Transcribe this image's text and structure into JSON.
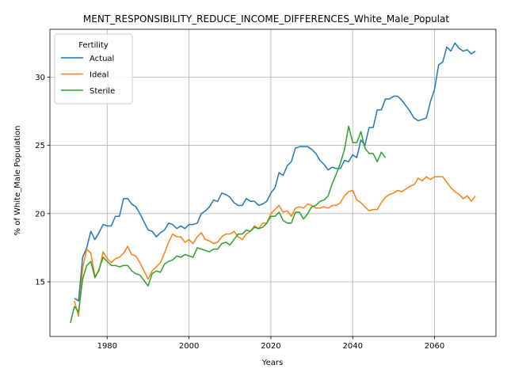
{
  "chart_data": {
    "type": "line",
    "title": "MENT_RESPONSIBILITY_REDUCE_INCOME_DIFFERENCES_White_Male_Populat",
    "xlabel": "Years",
    "ylabel": "% of White_Male Population",
    "xlim": [
      1966,
      2075
    ],
    "ylim": [
      11,
      33.5
    ],
    "xticks": [
      1980,
      2000,
      2020,
      2040,
      2060
    ],
    "yticks": [
      15,
      20,
      25,
      30
    ],
    "grid": true,
    "legend": {
      "title": "Fertility",
      "placement": "top-left"
    },
    "colors": {
      "Actual": "#1f77b4",
      "Ideal": "#ff7f0e",
      "Sterile": "#2ca02c"
    },
    "series": [
      {
        "name": "Actual",
        "x": [
          1972,
          1973,
          1974,
          1975,
          1976,
          1977,
          1978,
          1979,
          1980,
          1981,
          1982,
          1983,
          1984,
          1985,
          1986,
          1987,
          1988,
          1989,
          1990,
          1991,
          1992,
          1993,
          1994,
          1995,
          1996,
          1997,
          1998,
          1999,
          2000,
          2001,
          2002,
          2003,
          2004,
          2005,
          2006,
          2007,
          2008,
          2009,
          2010,
          2011,
          2012,
          2013,
          2014,
          2015,
          2016,
          2017,
          2018,
          2019,
          2020,
          2021,
          2022,
          2023,
          2024,
          2025,
          2026,
          2027,
          2028,
          2029,
          2030,
          2031,
          2032,
          2033,
          2034,
          2035,
          2036,
          2037,
          2038,
          2039,
          2040,
          2041,
          2042,
          2043,
          2044,
          2045,
          2046,
          2047,
          2048,
          2049,
          2050,
          2051,
          2052,
          2053,
          2054,
          2055,
          2056,
          2057,
          2058,
          2059,
          2060,
          2061,
          2062,
          2063,
          2064,
          2065,
          2066,
          2067,
          2068,
          2069,
          2070
        ],
        "values": [
          13.8,
          13.6,
          16.8,
          17.5,
          18.7,
          18.1,
          18.6,
          19.2,
          19.1,
          19.1,
          19.8,
          19.8,
          21.1,
          21.1,
          20.7,
          20.5,
          20.0,
          19.4,
          18.8,
          18.7,
          18.3,
          18.6,
          18.8,
          19.3,
          19.2,
          18.9,
          19.1,
          18.9,
          19.2,
          19.2,
          19.3,
          20.0,
          20.2,
          20.5,
          21.0,
          20.9,
          21.5,
          21.4,
          21.2,
          20.8,
          20.6,
          20.6,
          21.1,
          20.9,
          20.9,
          20.6,
          20.7,
          20.9,
          21.5,
          21.9,
          23.0,
          22.8,
          23.5,
          23.8,
          24.8,
          24.9,
          24.9,
          24.9,
          24.7,
          24.4,
          23.9,
          23.6,
          23.2,
          23.4,
          23.3,
          23.3,
          23.9,
          23.8,
          24.3,
          24.1,
          25.4,
          25.0,
          26.3,
          26.3,
          27.6,
          27.6,
          28.4,
          28.4,
          28.6,
          28.6,
          28.3,
          27.9,
          27.5,
          27.0,
          26.8,
          26.9,
          27.0,
          28.2,
          29.1,
          30.9,
          31.1,
          32.2,
          31.9,
          32.5,
          32.1,
          31.9,
          32.0,
          31.7,
          31.9
        ]
      },
      {
        "name": "Ideal",
        "x": [
          1972,
          1973,
          1974,
          1975,
          1976,
          1977,
          1978,
          1979,
          1980,
          1981,
          1982,
          1983,
          1984,
          1985,
          1986,
          1987,
          1988,
          1989,
          1990,
          1991,
          1992,
          1993,
          1994,
          1995,
          1996,
          1997,
          1998,
          1999,
          2000,
          2001,
          2002,
          2003,
          2004,
          2005,
          2006,
          2007,
          2008,
          2009,
          2010,
          2011,
          2012,
          2013,
          2014,
          2015,
          2016,
          2017,
          2018,
          2019,
          2020,
          2021,
          2022,
          2023,
          2024,
          2025,
          2026,
          2027,
          2028,
          2029,
          2030,
          2031,
          2032,
          2033,
          2034,
          2035,
          2036,
          2037,
          2038,
          2039,
          2040,
          2041,
          2042,
          2043,
          2044,
          2045,
          2046,
          2047,
          2048,
          2049,
          2050,
          2051,
          2052,
          2053,
          2054,
          2055,
          2056,
          2057,
          2058,
          2059,
          2060,
          2061,
          2062,
          2063,
          2064,
          2065,
          2066,
          2067,
          2068,
          2069,
          2070
        ],
        "values": [
          13.6,
          12.5,
          16.0,
          17.4,
          17.1,
          15.4,
          15.8,
          17.2,
          16.7,
          16.4,
          16.7,
          16.8,
          17.1,
          17.6,
          17.0,
          16.9,
          16.4,
          15.8,
          15.2,
          15.8,
          16.1,
          16.4,
          17.1,
          17.9,
          18.5,
          18.3,
          18.3,
          17.9,
          18.1,
          17.8,
          18.3,
          18.6,
          18.1,
          18.0,
          17.8,
          17.9,
          18.3,
          18.5,
          18.5,
          18.7,
          18.3,
          18.1,
          18.5,
          18.7,
          19.1,
          18.9,
          19.3,
          19.3,
          20.0,
          20.3,
          20.6,
          20.1,
          20.2,
          19.8,
          20.4,
          20.5,
          20.4,
          20.7,
          20.6,
          20.4,
          20.4,
          20.5,
          20.4,
          20.6,
          20.6,
          20.8,
          21.3,
          21.6,
          21.7,
          21.0,
          20.8,
          20.5,
          20.2,
          20.3,
          20.3,
          20.8,
          21.2,
          21.4,
          21.5,
          21.7,
          21.6,
          21.8,
          22.0,
          22.1,
          22.6,
          22.4,
          22.7,
          22.5,
          22.7,
          22.7,
          22.7,
          22.3,
          21.9,
          21.6,
          21.4,
          21.1,
          21.3,
          20.9,
          21.3
        ]
      },
      {
        "name": "Sterile",
        "x": [
          1971,
          1972,
          1973,
          1974,
          1975,
          1976,
          1977,
          1978,
          1979,
          1980,
          1981,
          1982,
          1983,
          1984,
          1985,
          1986,
          1987,
          1988,
          1989,
          1990,
          1991,
          1992,
          1993,
          1994,
          1995,
          1996,
          1997,
          1998,
          1999,
          2000,
          2001,
          2002,
          2003,
          2004,
          2005,
          2006,
          2007,
          2008,
          2009,
          2010,
          2011,
          2012,
          2013,
          2014,
          2015,
          2016,
          2017,
          2018,
          2019,
          2020,
          2021,
          2022,
          2023,
          2024,
          2025,
          2026,
          2027,
          2028,
          2029,
          2030,
          2031,
          2032,
          2033,
          2034,
          2035,
          2036,
          2037,
          2038,
          2039,
          2040,
          2041,
          2042,
          2043,
          2044,
          2045,
          2046,
          2047,
          2048
        ],
        "values": [
          12.0,
          13.2,
          12.8,
          15.2,
          16.2,
          16.5,
          15.3,
          15.9,
          16.8,
          16.5,
          16.2,
          16.2,
          16.1,
          16.2,
          16.2,
          15.8,
          15.6,
          15.5,
          15.1,
          14.7,
          15.6,
          15.8,
          15.7,
          16.3,
          16.5,
          16.6,
          16.9,
          16.8,
          17.0,
          16.9,
          16.8,
          17.5,
          17.4,
          17.3,
          17.2,
          17.4,
          17.4,
          17.8,
          17.9,
          17.7,
          18.1,
          18.5,
          18.5,
          18.8,
          18.7,
          19.0,
          18.9,
          19.0,
          19.3,
          19.8,
          19.8,
          20.1,
          19.5,
          19.3,
          19.3,
          20.1,
          20.1,
          19.6,
          20.0,
          20.5,
          20.6,
          20.9,
          21.0,
          21.3,
          22.2,
          22.9,
          23.7,
          24.7,
          26.4,
          25.2,
          25.2,
          26.0,
          24.8,
          24.4,
          24.4,
          23.8,
          24.5,
          24.1
        ]
      }
    ]
  }
}
